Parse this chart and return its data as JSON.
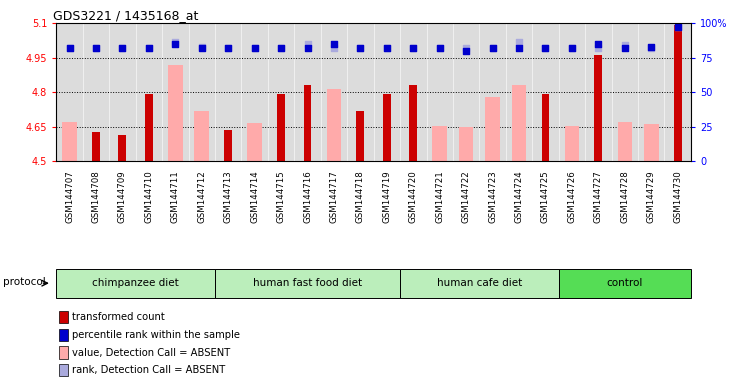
{
  "title": "GDS3221 / 1435168_at",
  "samples": [
    "GSM144707",
    "GSM144708",
    "GSM144709",
    "GSM144710",
    "GSM144711",
    "GSM144712",
    "GSM144713",
    "GSM144714",
    "GSM144715",
    "GSM144716",
    "GSM144717",
    "GSM144718",
    "GSM144719",
    "GSM144720",
    "GSM144721",
    "GSM144722",
    "GSM144723",
    "GSM144724",
    "GSM144725",
    "GSM144726",
    "GSM144727",
    "GSM144728",
    "GSM144729",
    "GSM144730"
  ],
  "red_bars": [
    null,
    4.625,
    4.615,
    4.79,
    null,
    null,
    4.635,
    null,
    4.79,
    4.83,
    null,
    4.72,
    4.79,
    4.83,
    null,
    null,
    null,
    null,
    4.79,
    null,
    4.96,
    null,
    null,
    5.09
  ],
  "pink_bars": [
    4.67,
    null,
    null,
    null,
    4.92,
    4.72,
    null,
    4.665,
    null,
    null,
    4.815,
    null,
    null,
    null,
    4.655,
    4.65,
    4.78,
    4.83,
    null,
    4.655,
    null,
    4.67,
    4.66,
    null
  ],
  "blue_dots_pct": [
    82,
    82,
    82,
    82,
    85,
    82,
    82,
    82,
    82,
    82,
    85,
    82,
    82,
    82,
    82,
    80,
    82,
    82,
    82,
    82,
    85,
    82,
    83,
    97
  ],
  "lavender_dots_pct": [
    82,
    82,
    82,
    82,
    86,
    83,
    82,
    82,
    82,
    85,
    82,
    82,
    82,
    82,
    82,
    82,
    82,
    86,
    82,
    82,
    82,
    84,
    82,
    97
  ],
  "groups": [
    {
      "label": "chimpanzee diet",
      "start": 0,
      "end": 5,
      "color": "#BBEEBB"
    },
    {
      "label": "human fast food diet",
      "start": 6,
      "end": 12,
      "color": "#BBEEBB"
    },
    {
      "label": "human cafe diet",
      "start": 13,
      "end": 18,
      "color": "#BBEEBB"
    },
    {
      "label": "control",
      "start": 19,
      "end": 23,
      "color": "#55DD55"
    }
  ],
  "ylim": [
    4.5,
    5.1
  ],
  "yticks": [
    4.5,
    4.65,
    4.8,
    4.95,
    5.1
  ],
  "ytick_labels": [
    "4.5",
    "4.65",
    "4.8",
    "4.95",
    "5.1"
  ],
  "right_yticks_pct": [
    0,
    25,
    50,
    75,
    100
  ],
  "right_ytick_labels": [
    "0",
    "25",
    "50",
    "75",
    "100%"
  ],
  "hlines": [
    4.65,
    4.8,
    4.95
  ],
  "bar_color_red": "#CC0000",
  "bar_color_pink": "#FFAAAA",
  "dot_color_blue": "#0000CC",
  "dot_color_lavender": "#AAAADD",
  "legend": [
    {
      "color": "#CC0000",
      "label": "transformed count"
    },
    {
      "color": "#0000CC",
      "label": "percentile rank within the sample"
    },
    {
      "color": "#FFAAAA",
      "label": "value, Detection Call = ABSENT"
    },
    {
      "color": "#AAAADD",
      "label": "rank, Detection Call = ABSENT"
    }
  ]
}
